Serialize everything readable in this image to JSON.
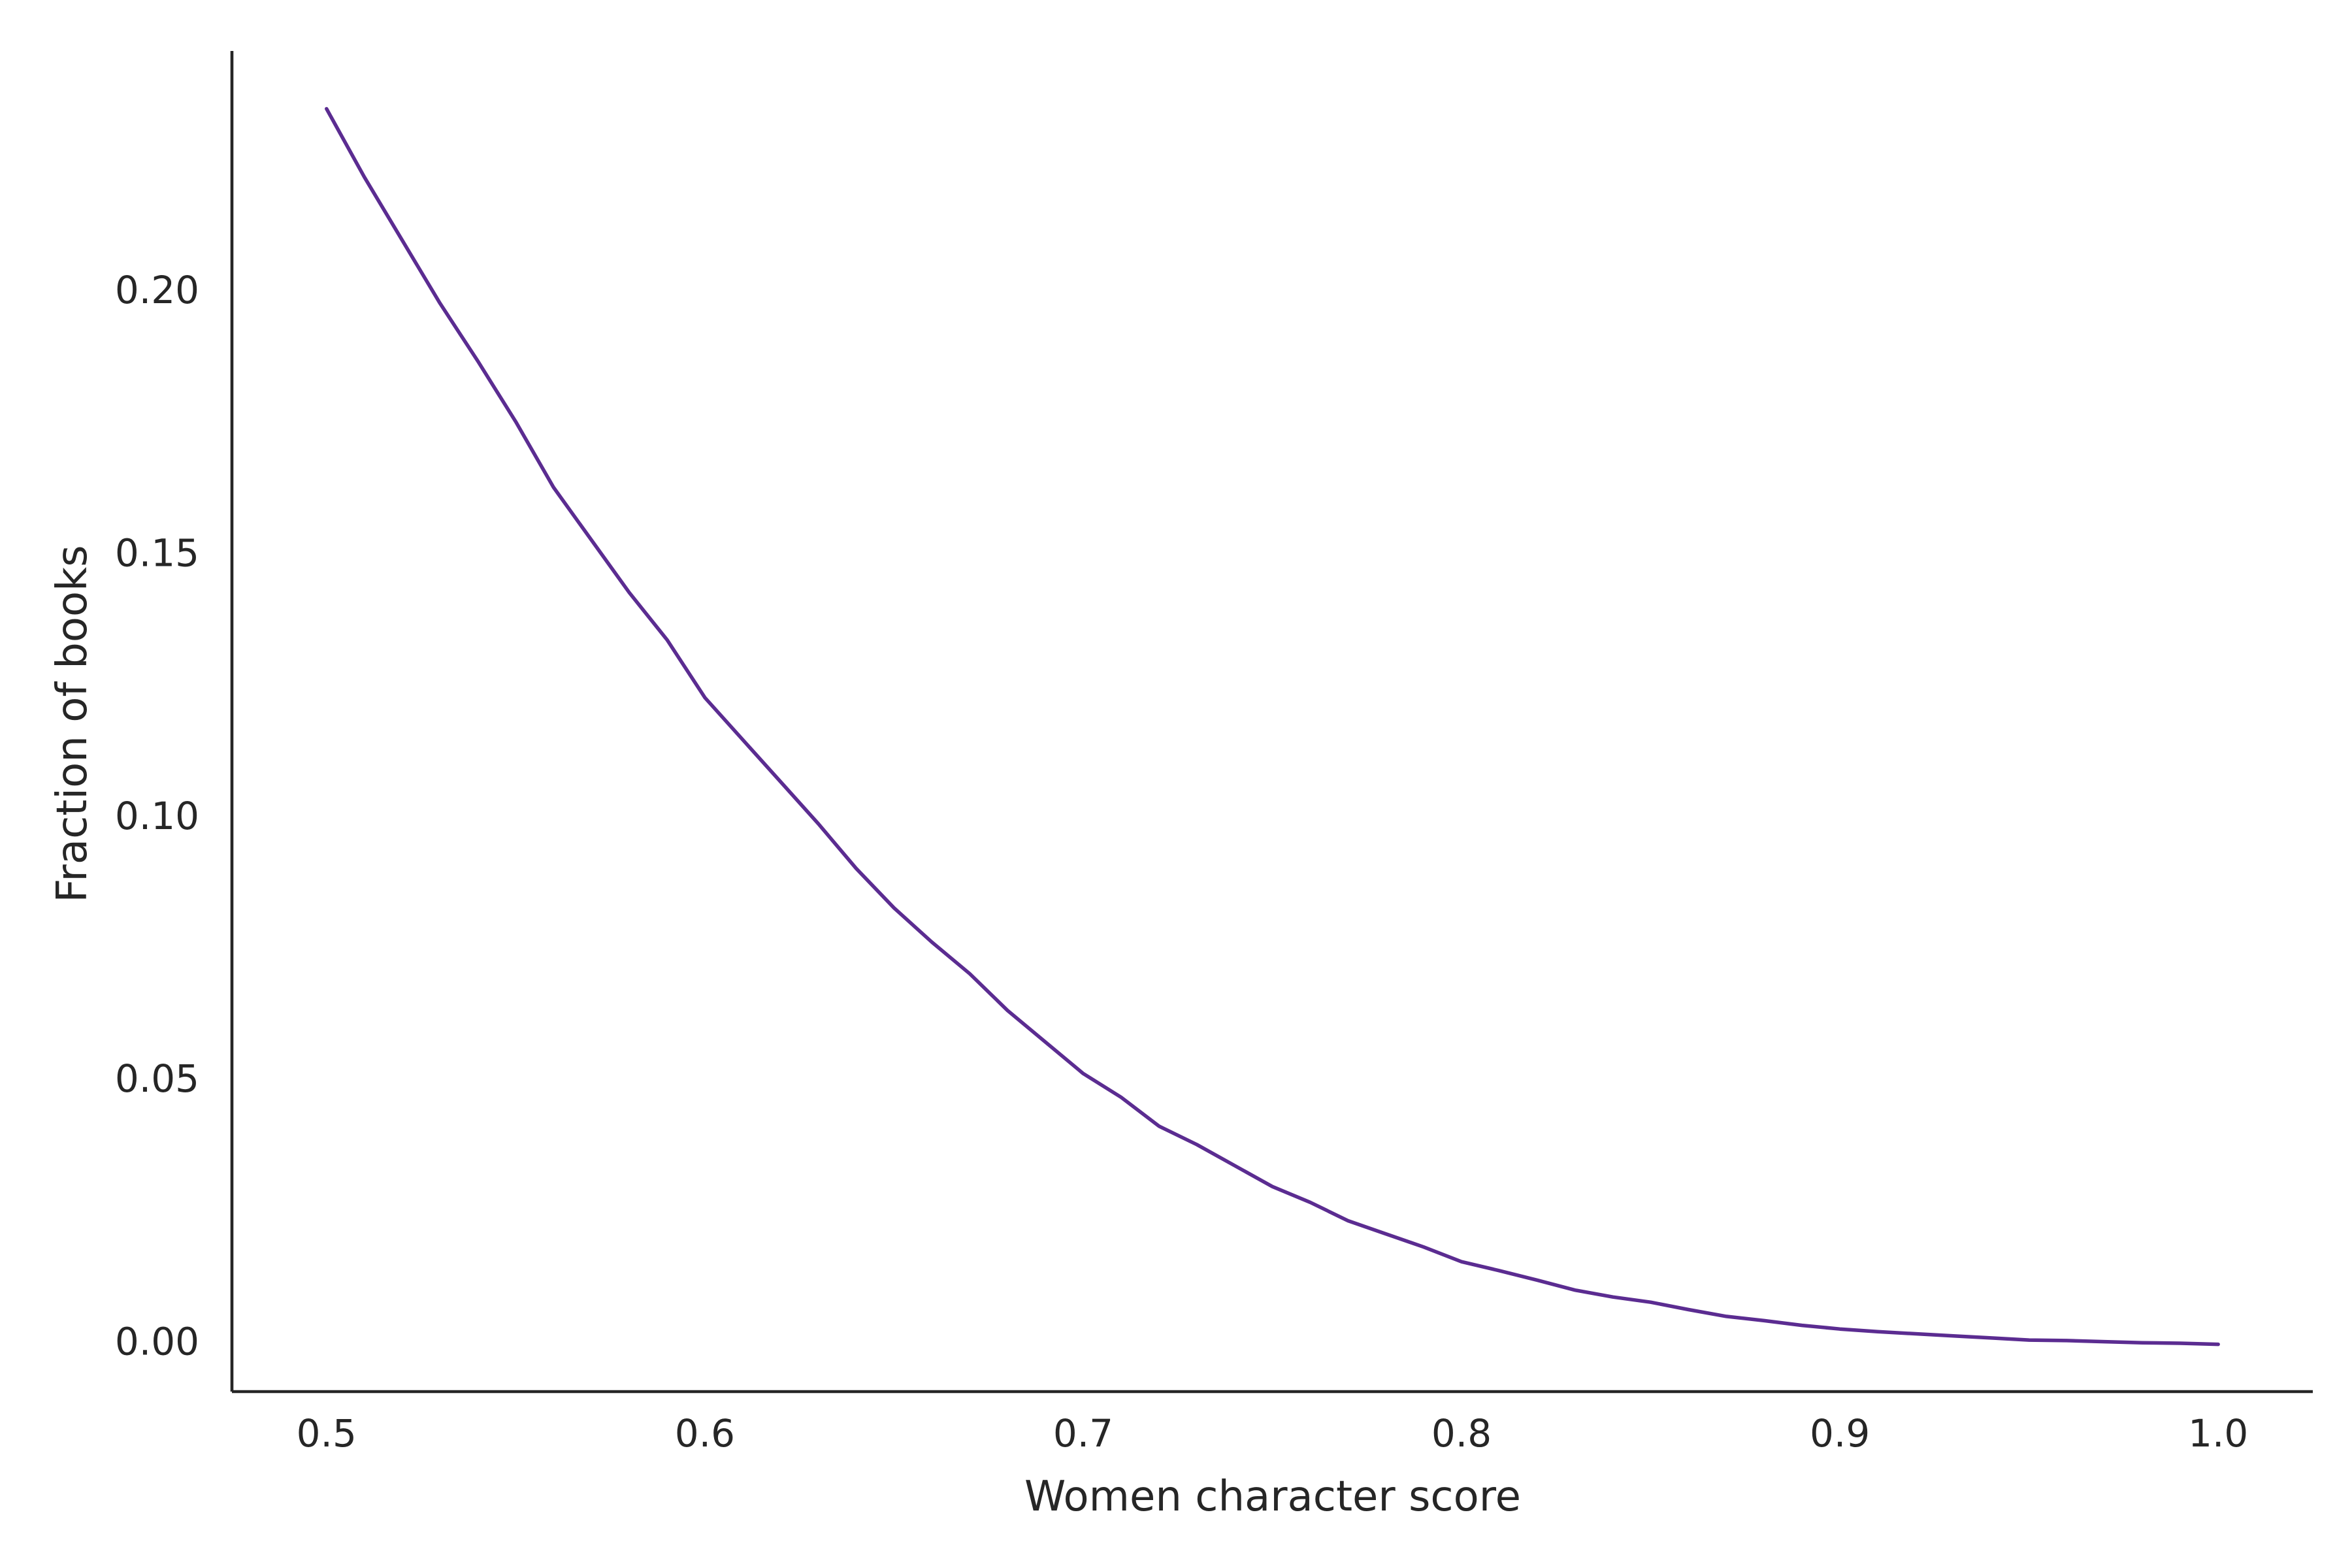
{
  "chart_data": {
    "type": "line",
    "xlabel": "Women character score",
    "ylabel": "Fraction of books",
    "xlim": [
      0.475,
      1.025
    ],
    "ylim": [
      -0.0095,
      0.2455
    ],
    "xticks": [
      0.5,
      0.6,
      0.7,
      0.8,
      0.9,
      1.0
    ],
    "xtick_labels": [
      "0.5",
      "0.6",
      "0.7",
      "0.8",
      "0.9",
      "1.0"
    ],
    "yticks": [
      0.0,
      0.05,
      0.1,
      0.15,
      0.2
    ],
    "ytick_labels": [
      "0.00",
      "0.05",
      "0.10",
      "0.15",
      "0.20"
    ],
    "grid": false,
    "line_color": "#5b2c91",
    "series": [
      {
        "x": [
          0.5,
          0.51,
          0.52,
          0.53,
          0.54,
          0.55,
          0.56,
          0.57,
          0.58,
          0.59,
          0.6,
          0.61,
          0.62,
          0.63,
          0.64,
          0.65,
          0.66,
          0.67,
          0.68,
          0.69,
          0.7,
          0.71,
          0.72,
          0.73,
          0.74,
          0.75,
          0.76,
          0.77,
          0.78,
          0.79,
          0.8,
          0.81,
          0.82,
          0.83,
          0.84,
          0.85,
          0.86,
          0.87,
          0.88,
          0.89,
          0.9,
          0.91,
          0.92,
          0.93,
          0.94,
          0.95,
          0.96,
          0.97,
          0.98,
          0.99,
          1.0
        ],
        "y": [
          0.2345,
          0.2215,
          0.2095,
          0.1975,
          0.1865,
          0.175,
          0.1625,
          0.1525,
          0.1425,
          0.1335,
          0.1225,
          0.1145,
          0.1065,
          0.0985,
          0.09,
          0.0825,
          0.076,
          0.07,
          0.063,
          0.057,
          0.051,
          0.0465,
          0.041,
          0.0375,
          0.0335,
          0.0295,
          0.0265,
          0.023,
          0.0205,
          0.018,
          0.0152,
          0.0135,
          0.0117,
          0.0098,
          0.0085,
          0.0075,
          0.0061,
          0.0048,
          0.004,
          0.0031,
          0.0024,
          0.0019,
          0.0015,
          0.0011,
          0.0007,
          0.0003,
          0.0002,
          0.0,
          -0.0002,
          -0.0003,
          -0.0005
        ]
      }
    ]
  }
}
